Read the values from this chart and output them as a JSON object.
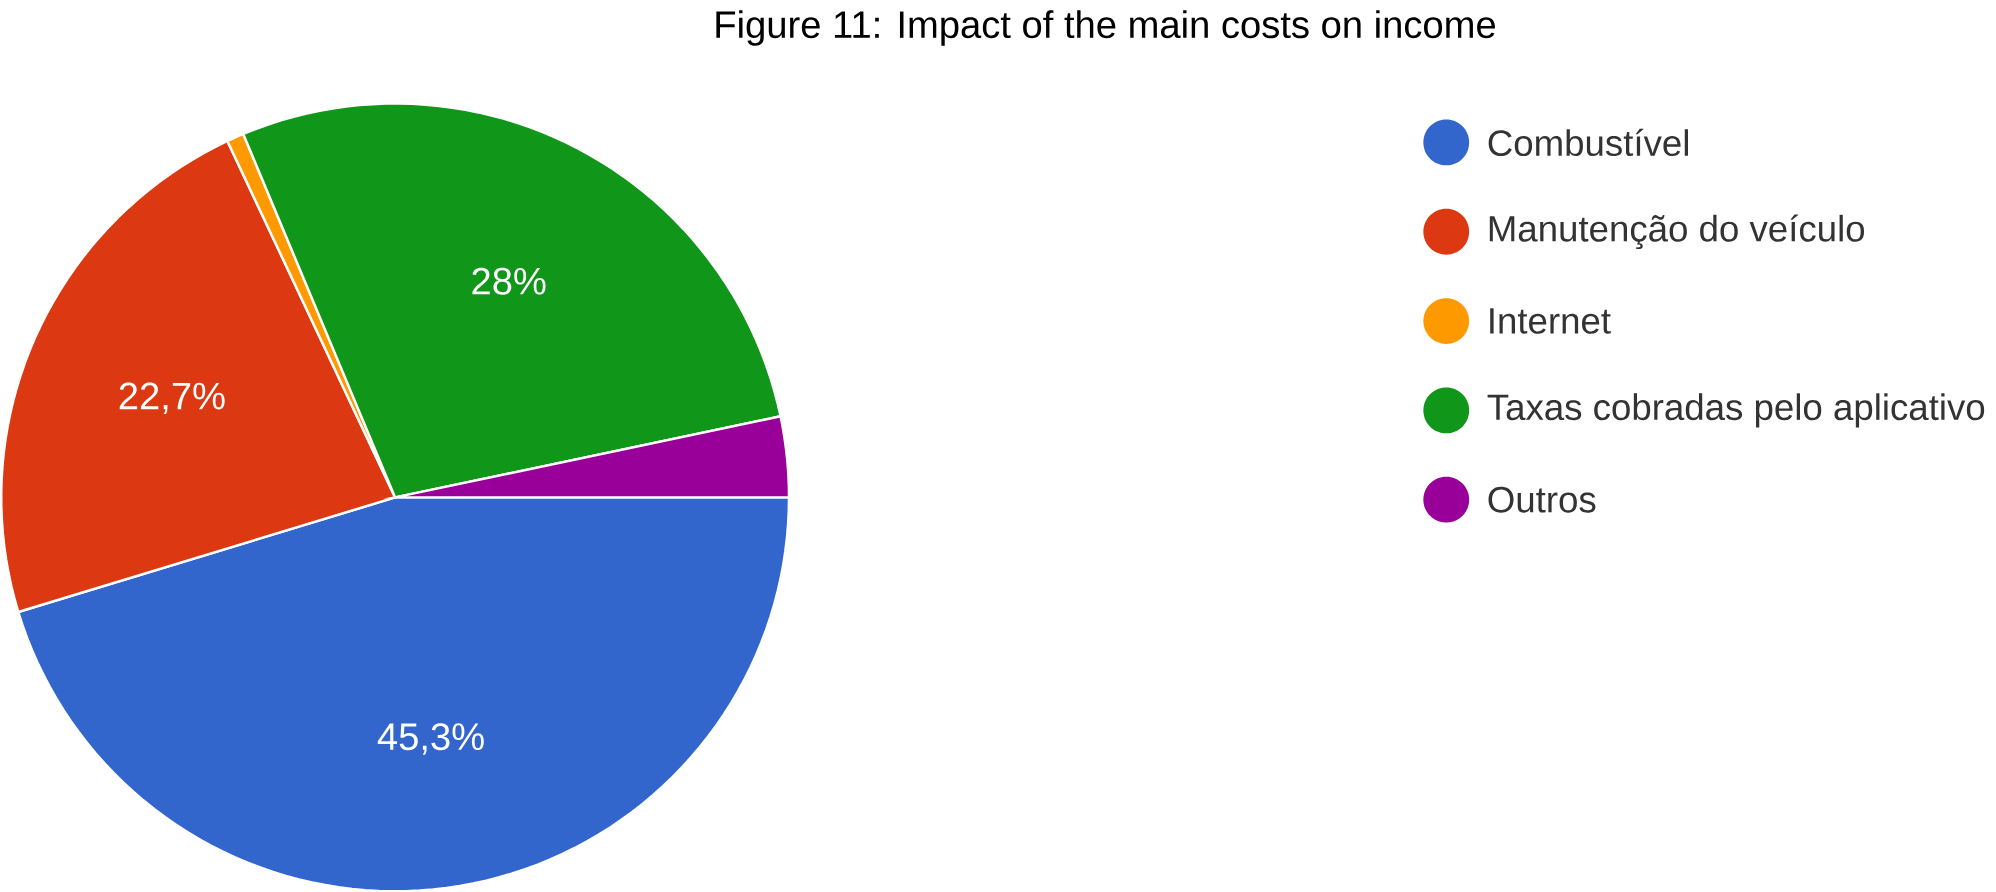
{
  "chart_data": {
    "type": "pie",
    "title": "Figure 11: Impact of the main costs on income",
    "categories": [
      "Combustível",
      "Manutenção do veículo",
      "Internet",
      "Taxas cobradas pelo aplicativo",
      "Outros"
    ],
    "values": [
      45.3,
      22.7,
      0.7,
      28,
      3.3
    ],
    "colors": [
      "#3366cc",
      "#dc3912",
      "#ff9900",
      "#109618",
      "#990099"
    ],
    "value_labels": [
      "45,3%",
      "22,7%",
      null,
      "28%",
      null
    ],
    "legend": "right"
  }
}
